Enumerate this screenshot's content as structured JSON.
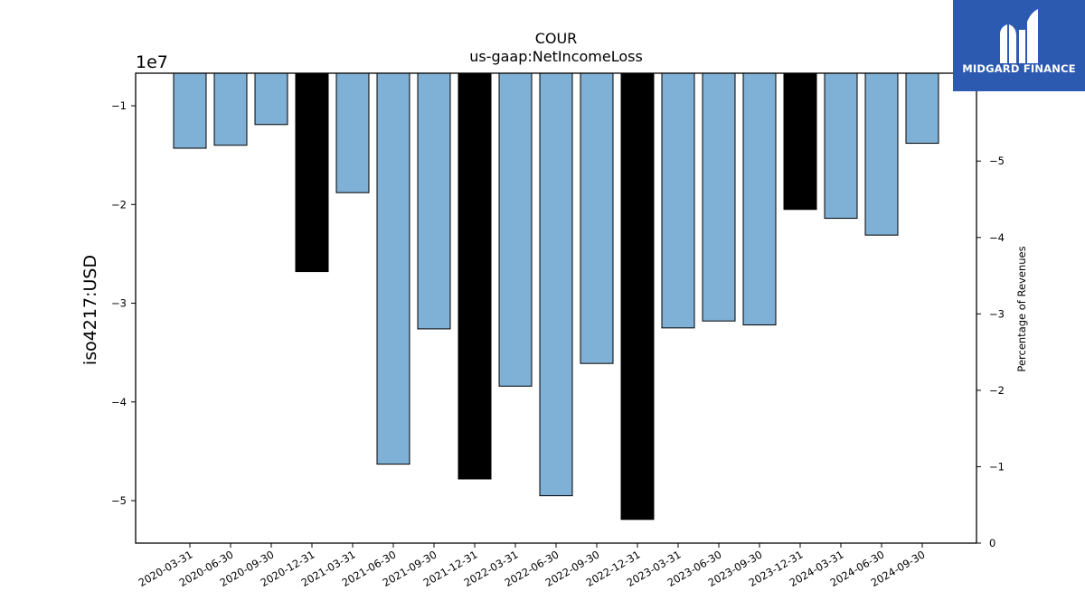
{
  "colors": {
    "bar_default": "#7fb0d5",
    "bar_highlight": "#000000",
    "bar_edge": "#000000",
    "logo_background": "#2d5ab1",
    "logo_foreground": "#ffffff"
  },
  "logo": {
    "text": "MIDGARD FINANCE",
    "icon": "midgard-m-icon"
  },
  "chart_data": {
    "type": "bar",
    "title": "COUR",
    "subtitle": "us-gaap:NetIncomeLoss",
    "ylabel": "iso4217:USD",
    "y_offset_label": "1e7",
    "y2label": "Percentage of Revenues",
    "categories": [
      "2020-03-31",
      "2020-06-30",
      "2020-09-30",
      "2020-12-31",
      "2021-03-31",
      "2021-06-30",
      "2021-09-30",
      "2021-12-31",
      "2022-03-31",
      "2022-06-30",
      "2022-09-30",
      "2022-12-31",
      "2023-03-31",
      "2023-06-30",
      "2023-09-30",
      "2023-12-31",
      "2024-03-31",
      "2024-06-30",
      "2024-09-30"
    ],
    "values": [
      -14300000,
      -14000000,
      -11900000,
      -26800000,
      -18800000,
      -46300000,
      -32600000,
      -47800000,
      -38400000,
      -49500000,
      -36100000,
      -51900000,
      -32500000,
      -31800000,
      -32200000,
      -20500000,
      -21400000,
      -23100000,
      -13800000
    ],
    "annual_flags": [
      false,
      false,
      false,
      true,
      false,
      false,
      false,
      true,
      false,
      false,
      false,
      true,
      false,
      false,
      false,
      true,
      false,
      false,
      false
    ],
    "ylim": [
      -54300000,
      -6700000
    ],
    "yticks": [
      -10000000,
      -20000000,
      -30000000,
      -40000000,
      -50000000
    ],
    "ytick_labels": [
      "−1",
      "−2",
      "−3",
      "−4",
      "−5"
    ],
    "y2lim": [
      0,
      -6.15
    ],
    "y2ticks": [
      0,
      -1,
      -2,
      -3,
      -4,
      -5
    ],
    "y2tick_labels": [
      "0",
      "−1",
      "−2",
      "−3",
      "−4",
      "−5"
    ],
    "grid": false,
    "legend": "none"
  }
}
